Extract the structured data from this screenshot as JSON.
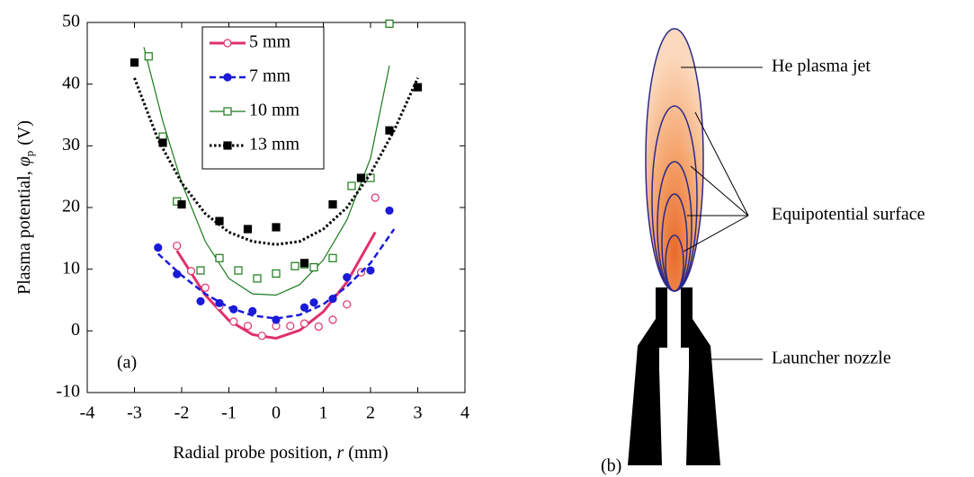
{
  "chart_data": {
    "type": "scatter",
    "ylabel": {
      "text": "Plasma potential, ",
      "symbol": "φ",
      "sub": "p",
      "unit": "(V)"
    },
    "xlabel": {
      "text": "Radial probe position, ",
      "symbol": "r",
      "unit": "(mm)"
    },
    "panel_label": "(a)",
    "xlim": [
      -4,
      4
    ],
    "xticks": [
      -4,
      -3,
      -2,
      -1,
      0,
      1,
      2,
      3,
      4
    ],
    "ylim": [
      -10,
      50
    ],
    "yticks": [
      -10,
      0,
      10,
      20,
      30,
      40,
      50
    ],
    "legend": "upper center",
    "series": [
      {
        "name": "5  mm",
        "color": "#e0306c",
        "marker": "circle-open",
        "dash": "solid",
        "width": 3,
        "x": [
          -2.1,
          -1.8,
          -1.5,
          -1.2,
          -0.9,
          -0.6,
          -0.3,
          0,
          0.3,
          0.6,
          0.9,
          1.2,
          1.5,
          1.8,
          2.1
        ],
        "values": [
          13.8,
          9.7,
          7,
          4,
          1.5,
          0.8,
          -0.8,
          0.8,
          0.8,
          1.2,
          0.7,
          1.8,
          4.3,
          9.5,
          21.6
        ],
        "fit_x": [
          -2.1,
          -1.5,
          -1,
          -0.5,
          0,
          0.5,
          1,
          1.5,
          2.1
        ],
        "fit_values": [
          13,
          5.8,
          1.7,
          -0.6,
          -1.2,
          0.1,
          3.1,
          7.9,
          16
        ]
      },
      {
        "name": "7 mm",
        "color": "#1a1ad8",
        "marker": "circle-filled",
        "dash": "dashed",
        "width": 2.5,
        "x": [
          -2.5,
          -2.1,
          -1.6,
          -1.2,
          -0.9,
          -0.5,
          0,
          0.6,
          0.8,
          1.2,
          1.5,
          2,
          2.4
        ],
        "values": [
          13.5,
          9.2,
          4.8,
          4.5,
          3.5,
          3.2,
          1.8,
          3.8,
          4.6,
          5.2,
          8.7,
          9.8,
          19.5
        ],
        "fit_x": [
          -2.5,
          -2,
          -1.5,
          -1,
          -0.5,
          0,
          0.5,
          1,
          1.5,
          2,
          2.5
        ],
        "fit_values": [
          12.5,
          9,
          6,
          3.8,
          2.5,
          2,
          2.6,
          4.3,
          7.2,
          11,
          16.5
        ]
      },
      {
        "name": "10 mm",
        "color": "#1a7a1a",
        "marker": "square-open",
        "dash": "solid",
        "width": 1.2,
        "x": [
          -2.7,
          -2.4,
          -2.1,
          -1.6,
          -1.2,
          -0.8,
          -0.4,
          0,
          0.4,
          0.6,
          0.8,
          1.2,
          1.6,
          1.8,
          2,
          2.4
        ],
        "values": [
          44.5,
          31.5,
          21,
          9.8,
          11.8,
          9.8,
          8.5,
          9.3,
          10.5,
          10.8,
          10.3,
          11.8,
          23.5,
          24.8,
          24.8,
          49.8
        ],
        "fit_x": [
          -2.8,
          -2.4,
          -2,
          -1.5,
          -1,
          -0.5,
          0,
          0.5,
          1,
          1.5,
          2,
          2.4
        ],
        "fit_values": [
          46,
          34,
          24,
          14.5,
          8.5,
          6,
          5.8,
          7.5,
          11.5,
          18,
          28,
          43
        ]
      },
      {
        "name": "13 mm",
        "color": "#000000",
        "marker": "square-filled",
        "dash": "dotted",
        "width": 3,
        "x": [
          -3,
          -2.4,
          -2,
          -1.2,
          -0.6,
          0,
          0.6,
          1.2,
          1.8,
          2.4,
          3
        ],
        "values": [
          43.5,
          30.5,
          20.5,
          17.8,
          16.5,
          16.8,
          11,
          20.5,
          24.8,
          32.5,
          39.5
        ],
        "fit_x": [
          -3,
          -2.5,
          -2,
          -1.5,
          -1,
          -0.5,
          0,
          0.5,
          1,
          1.5,
          2,
          2.5,
          3
        ],
        "fit_values": [
          41,
          31,
          24,
          19,
          16,
          14.5,
          14,
          14.5,
          16.5,
          20,
          25.5,
          32.5,
          41
        ]
      }
    ]
  },
  "diagram": {
    "jet_label": "He plasma jet",
    "surface_label": "Equipotential surface",
    "nozzle_label": "Launcher nozzle",
    "panel_label": "(b)"
  }
}
